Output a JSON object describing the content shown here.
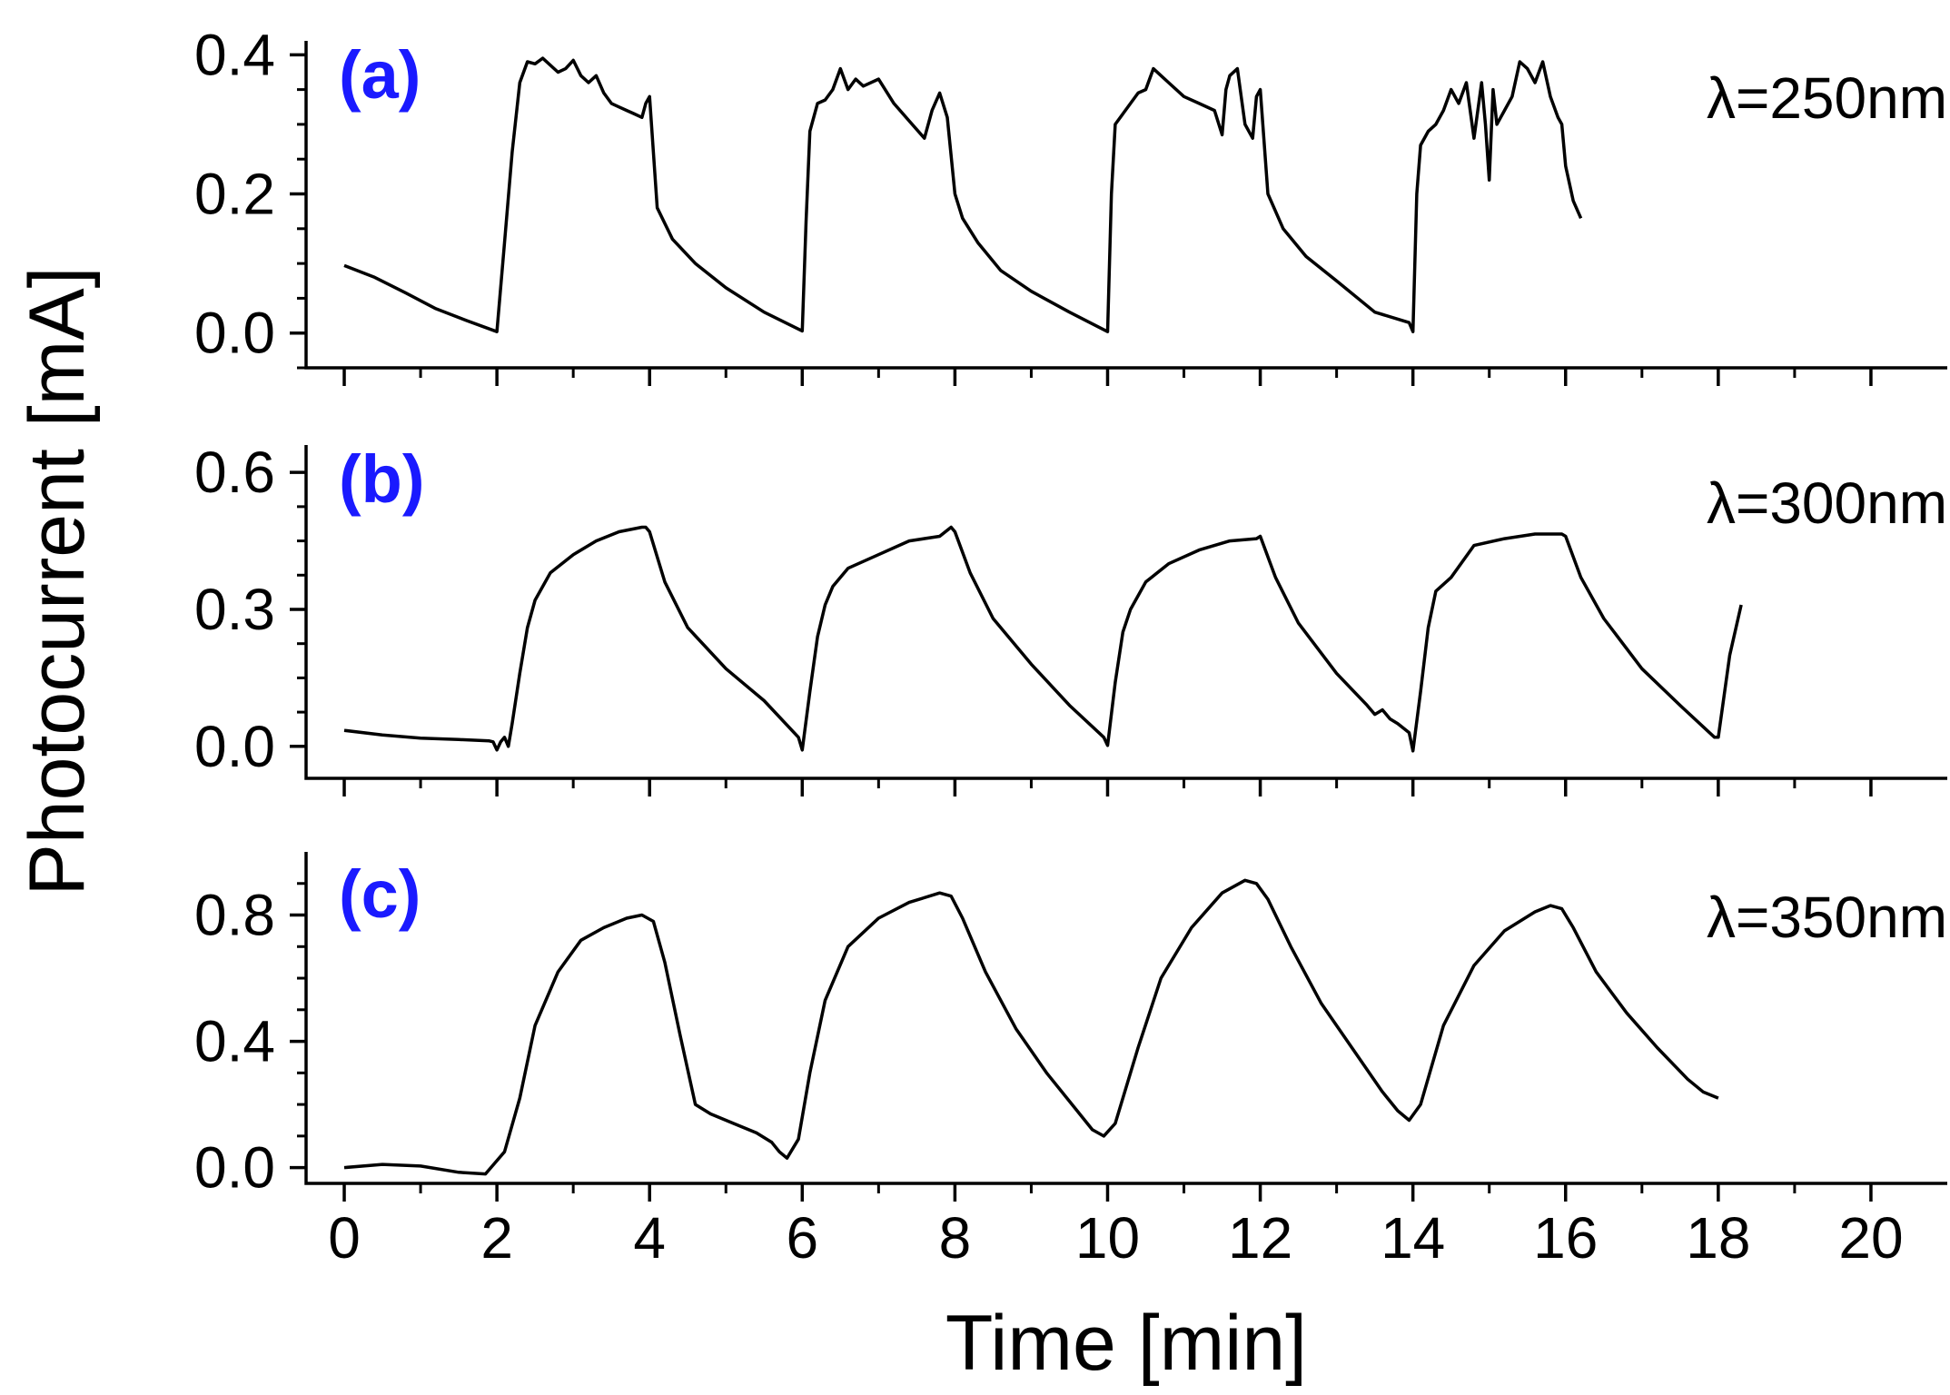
{
  "figure": {
    "ylabel": "Photocurrent [mA]",
    "xlabel": "Time [min]",
    "label_color": "#1a1aff",
    "line_color": "#000000"
  },
  "chart_data": [
    {
      "type": "line",
      "panel_label": "(a)",
      "annotation": "λ=250nm",
      "xlabel": "Time [min]",
      "ylabel": "Photocurrent [mA]",
      "xlim": [
        -0.5,
        21
      ],
      "ylim": [
        -0.05,
        0.42
      ],
      "x_ticks": [
        0,
        2,
        4,
        6,
        8,
        10,
        12,
        14,
        16,
        18,
        20
      ],
      "y_ticks": [
        0.0,
        0.2,
        0.4
      ],
      "y_tick_labels": [
        "0.0",
        "0.2",
        "0.4"
      ],
      "x_tick_labels_visible": false,
      "series": [
        {
          "name": "λ=250nm",
          "x": [
            0.0,
            0.4,
            0.8,
            1.2,
            1.6,
            2.0,
            2.1,
            2.2,
            2.3,
            2.4,
            2.5,
            2.6,
            2.8,
            2.9,
            3.0,
            3.1,
            3.2,
            3.3,
            3.4,
            3.5,
            3.6,
            3.7,
            3.8,
            3.9,
            3.95,
            4.0,
            4.1,
            4.3,
            4.6,
            5.0,
            5.5,
            6.0,
            6.05,
            6.1,
            6.2,
            6.3,
            6.4,
            6.5,
            6.6,
            6.7,
            6.8,
            7.0,
            7.2,
            7.4,
            7.6,
            7.7,
            7.8,
            7.9,
            8.0,
            8.1,
            8.3,
            8.6,
            9.0,
            9.5,
            10.0,
            10.05,
            10.1,
            10.2,
            10.3,
            10.4,
            10.5,
            10.6,
            10.8,
            11.0,
            11.2,
            11.4,
            11.5,
            11.55,
            11.6,
            11.7,
            11.75,
            11.8,
            11.9,
            11.95,
            12.0,
            12.1,
            12.3,
            12.6,
            13.0,
            13.5,
            13.95,
            14.0,
            14.05,
            14.1,
            14.2,
            14.3,
            14.4,
            14.5,
            14.6,
            14.7,
            14.8,
            14.9,
            14.95,
            15.0,
            15.05,
            15.1,
            15.2,
            15.3,
            15.4,
            15.5,
            15.6,
            15.7,
            15.8,
            15.9,
            15.95,
            16.0,
            16.1,
            16.2
          ],
          "y": [
            0.097,
            0.08,
            0.058,
            0.035,
            0.018,
            0.002,
            0.13,
            0.26,
            0.36,
            0.39,
            0.387,
            0.395,
            0.375,
            0.38,
            0.392,
            0.37,
            0.36,
            0.37,
            0.345,
            0.33,
            0.325,
            0.32,
            0.315,
            0.31,
            0.33,
            0.34,
            0.18,
            0.135,
            0.1,
            0.065,
            0.03,
            0.003,
            0.16,
            0.29,
            0.33,
            0.335,
            0.35,
            0.38,
            0.35,
            0.365,
            0.355,
            0.365,
            0.33,
            0.305,
            0.28,
            0.32,
            0.345,
            0.31,
            0.2,
            0.165,
            0.13,
            0.09,
            0.06,
            0.03,
            0.002,
            0.2,
            0.3,
            0.315,
            0.33,
            0.345,
            0.35,
            0.38,
            0.36,
            0.34,
            0.33,
            0.32,
            0.285,
            0.35,
            0.37,
            0.38,
            0.34,
            0.3,
            0.28,
            0.34,
            0.35,
            0.2,
            0.15,
            0.11,
            0.075,
            0.03,
            0.015,
            0.002,
            0.2,
            0.27,
            0.29,
            0.3,
            0.32,
            0.35,
            0.33,
            0.36,
            0.28,
            0.36,
            0.3,
            0.22,
            0.35,
            0.3,
            0.32,
            0.34,
            0.39,
            0.38,
            0.36,
            0.39,
            0.34,
            0.31,
            0.3,
            0.24,
            0.19,
            0.165
          ]
        }
      ]
    },
    {
      "type": "line",
      "panel_label": "(b)",
      "annotation": "λ=300nm",
      "xlabel": "Time [min]",
      "ylabel": "Photocurrent [mA]",
      "xlim": [
        -0.5,
        21
      ],
      "ylim": [
        -0.07,
        0.66
      ],
      "x_ticks": [
        0,
        2,
        4,
        6,
        8,
        10,
        12,
        14,
        16,
        18,
        20
      ],
      "y_ticks": [
        0.0,
        0.3,
        0.6
      ],
      "y_tick_labels": [
        "0.0",
        "0.3",
        "0.6"
      ],
      "x_tick_labels_visible": false,
      "series": [
        {
          "name": "λ=300nm",
          "x": [
            0.0,
            0.5,
            1.0,
            1.5,
            1.9,
            1.95,
            2.0,
            2.05,
            2.1,
            2.15,
            2.2,
            2.3,
            2.4,
            2.5,
            2.7,
            3.0,
            3.3,
            3.6,
            3.9,
            3.95,
            4.0,
            4.2,
            4.5,
            5.0,
            5.5,
            5.95,
            6.0,
            6.1,
            6.2,
            6.3,
            6.4,
            6.6,
            7.0,
            7.4,
            7.8,
            7.95,
            8.0,
            8.2,
            8.5,
            9.0,
            9.5,
            9.95,
            10.0,
            10.1,
            10.2,
            10.3,
            10.5,
            10.8,
            11.2,
            11.6,
            11.95,
            12.0,
            12.2,
            12.5,
            13.0,
            13.4,
            13.5,
            13.6,
            13.7,
            13.8,
            13.95,
            14.0,
            14.1,
            14.2,
            14.3,
            14.5,
            14.8,
            15.2,
            15.6,
            15.95,
            16.0,
            16.2,
            16.5,
            17.0,
            17.5,
            17.95,
            18.0,
            18.05,
            18.15,
            18.3
          ],
          "y": [
            0.035,
            0.025,
            0.018,
            0.015,
            0.012,
            0.01,
            -0.008,
            0.01,
            0.02,
            0.0,
            0.05,
            0.16,
            0.26,
            0.32,
            0.38,
            0.42,
            0.45,
            0.47,
            0.48,
            0.48,
            0.47,
            0.36,
            0.26,
            0.17,
            0.1,
            0.02,
            -0.008,
            0.12,
            0.24,
            0.31,
            0.35,
            0.39,
            0.42,
            0.45,
            0.46,
            0.48,
            0.47,
            0.38,
            0.28,
            0.18,
            0.09,
            0.02,
            0.002,
            0.14,
            0.25,
            0.3,
            0.36,
            0.4,
            0.43,
            0.45,
            0.455,
            0.46,
            0.37,
            0.27,
            0.16,
            0.09,
            0.07,
            0.08,
            0.06,
            0.05,
            0.03,
            -0.01,
            0.12,
            0.26,
            0.34,
            0.37,
            0.44,
            0.455,
            0.465,
            0.465,
            0.46,
            0.37,
            0.28,
            0.17,
            0.09,
            0.02,
            0.02,
            0.08,
            0.2,
            0.31
          ]
        }
      ]
    },
    {
      "type": "line",
      "panel_label": "(c)",
      "annotation": "λ=350nm",
      "xlabel": "Time [min]",
      "ylabel": "Photocurrent [mA]",
      "xlim": [
        -0.5,
        21
      ],
      "ylim": [
        -0.05,
        1.0
      ],
      "x_ticks": [
        0,
        2,
        4,
        6,
        8,
        10,
        12,
        14,
        16,
        18,
        20
      ],
      "y_ticks": [
        0.0,
        0.4,
        0.8
      ],
      "y_tick_labels": [
        "0.0",
        "0.4",
        "0.8"
      ],
      "x_tick_labels": [
        "0",
        "2",
        "4",
        "6",
        "8",
        "10",
        "12",
        "14",
        "16",
        "18",
        "20"
      ],
      "x_tick_labels_visible": true,
      "series": [
        {
          "name": "λ=350nm",
          "x": [
            0.0,
            0.5,
            1.0,
            1.5,
            1.85,
            2.1,
            2.3,
            2.5,
            2.8,
            3.1,
            3.4,
            3.7,
            3.9,
            4.05,
            4.2,
            4.4,
            4.6,
            4.8,
            5.1,
            5.4,
            5.6,
            5.7,
            5.8,
            5.95,
            6.1,
            6.3,
            6.6,
            7.0,
            7.4,
            7.8,
            7.95,
            8.1,
            8.4,
            8.8,
            9.2,
            9.6,
            9.8,
            9.95,
            10.1,
            10.4,
            10.7,
            11.1,
            11.5,
            11.8,
            11.95,
            12.1,
            12.4,
            12.8,
            13.2,
            13.6,
            13.8,
            13.95,
            14.1,
            14.4,
            14.8,
            15.2,
            15.6,
            15.8,
            15.95,
            16.1,
            16.4,
            16.8,
            17.2,
            17.6,
            17.8,
            18.0
          ],
          "y": [
            0.0,
            0.01,
            0.005,
            -0.015,
            -0.02,
            0.05,
            0.22,
            0.45,
            0.62,
            0.72,
            0.76,
            0.79,
            0.8,
            0.78,
            0.65,
            0.42,
            0.2,
            0.17,
            0.14,
            0.11,
            0.08,
            0.05,
            0.03,
            0.09,
            0.3,
            0.53,
            0.7,
            0.79,
            0.84,
            0.87,
            0.86,
            0.79,
            0.62,
            0.44,
            0.3,
            0.18,
            0.12,
            0.1,
            0.14,
            0.38,
            0.6,
            0.76,
            0.87,
            0.91,
            0.9,
            0.85,
            0.7,
            0.52,
            0.38,
            0.24,
            0.18,
            0.15,
            0.2,
            0.45,
            0.64,
            0.75,
            0.81,
            0.83,
            0.82,
            0.76,
            0.62,
            0.49,
            0.38,
            0.28,
            0.24,
            0.22
          ]
        }
      ]
    }
  ]
}
